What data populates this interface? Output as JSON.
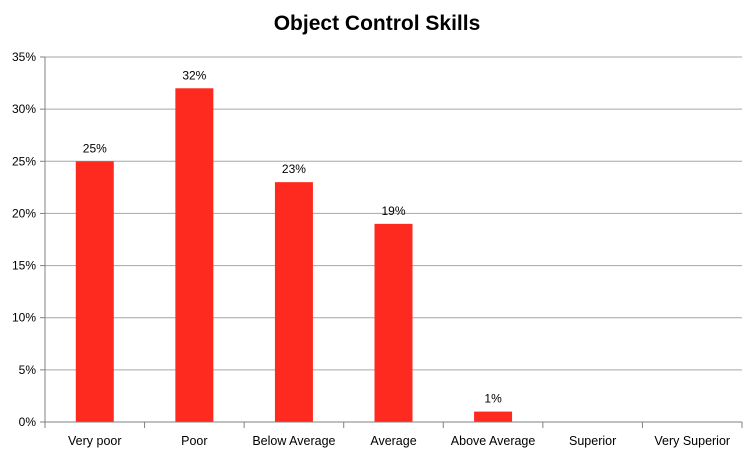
{
  "chart_data": {
    "type": "bar",
    "title": "Object Control Skills",
    "categories": [
      "Very poor",
      "Poor",
      "Below Average",
      "Average",
      "Above Average",
      "Superior",
      "Very Superior"
    ],
    "values": [
      25,
      32,
      23,
      19,
      1,
      0,
      0
    ],
    "data_labels": [
      "25%",
      "32%",
      "23%",
      "19%",
      "1%",
      "",
      ""
    ],
    "ylim": [
      0,
      35
    ],
    "yticks": [
      0,
      5,
      10,
      15,
      20,
      25,
      30,
      35
    ],
    "ytick_labels": [
      "0%",
      "5%",
      "10%",
      "15%",
      "20%",
      "25%",
      "30%",
      "35%"
    ],
    "xlabel": "",
    "ylabel": "",
    "grid": true,
    "legend": "none",
    "colors": {
      "bar": "#ff2a1f",
      "grid": "#a6a6a6",
      "axis": "#808080",
      "text": "#000000"
    }
  }
}
